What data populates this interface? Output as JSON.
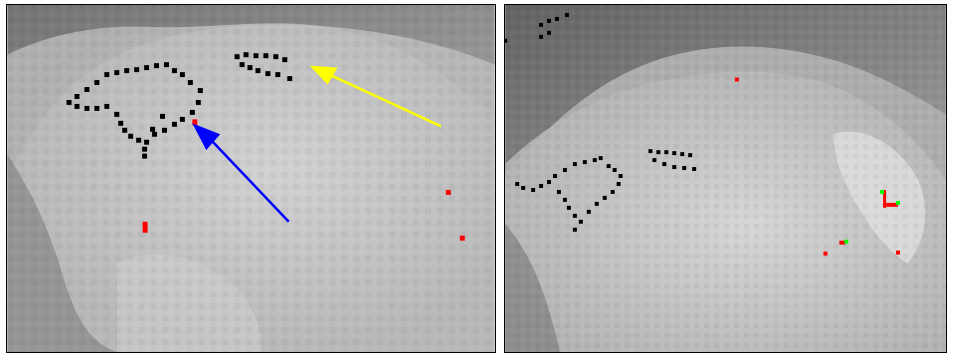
{
  "figure": {
    "panels": [
      {
        "id": "left",
        "description_visible": false,
        "colors": {
          "background_light": "#cfcfcf",
          "background_mid": "#b5b5b5",
          "background_dark": "#7a7a7a",
          "markers_black": "#000000",
          "markers_red": "#ff0000",
          "arrow_yellow": "#ffff00",
          "arrow_blue": "#0000ff"
        }
      },
      {
        "id": "right",
        "description_visible": false,
        "colors": {
          "background_light": "#d3d3d3",
          "background_mid": "#b0b0b0",
          "background_dark": "#6f6f6f",
          "markers_black": "#000000",
          "markers_red": "#ff0000",
          "markers_green": "#00ff00"
        }
      }
    ]
  }
}
